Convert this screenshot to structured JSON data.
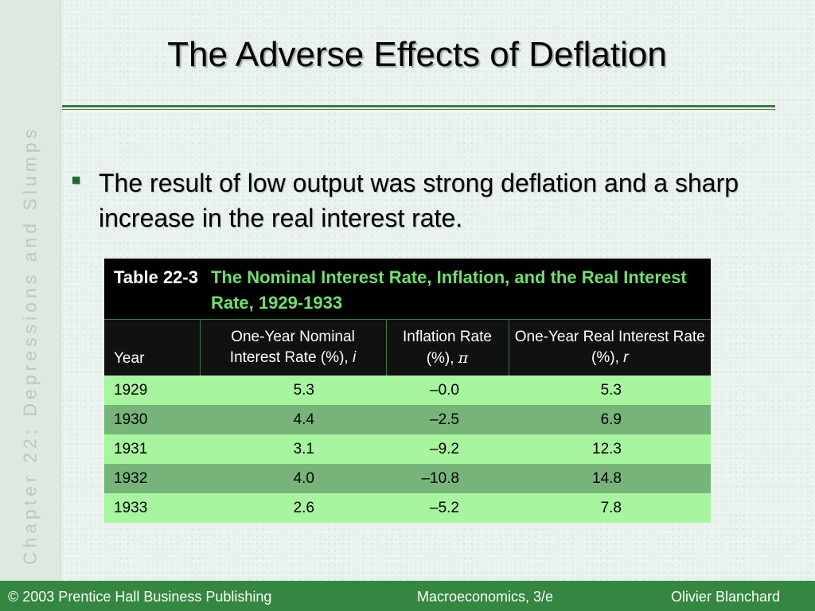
{
  "sidebar": {
    "chapter_label": "Chapter 22: Depressions and Slumps"
  },
  "slide": {
    "title": "The Adverse Effects of Deflation",
    "bullet": "The result of low output was strong deflation and a sharp increase in the real interest rate."
  },
  "table": {
    "number": "Table 22-3",
    "title": "The Nominal Interest Rate, Inflation, and the Real Interest Rate, 1929-1933",
    "headers": {
      "year": "Year",
      "nominal": "One-Year Nominal Interest Rate (%),",
      "nominal_sym": "i",
      "inflation": "Inflation Rate (%),",
      "inflation_sym": "π",
      "real": "One-Year Real Interest Rate (%),",
      "real_sym": "r"
    },
    "rows": [
      {
        "year": "1929",
        "nominal": "5.3",
        "inflation": "–0.0",
        "real": "5.3"
      },
      {
        "year": "1930",
        "nominal": "4.4",
        "inflation": "–2.5",
        "real": "6.9"
      },
      {
        "year": "1931",
        "nominal": "3.1",
        "inflation": "–9.2",
        "real": "12.3"
      },
      {
        "year": "1932",
        "nominal": "4.0",
        "inflation": "–10.8",
        "real": "14.8"
      },
      {
        "year": "1933",
        "nominal": "2.6",
        "inflation": "–5.2",
        "real": "7.8"
      }
    ]
  },
  "footer": {
    "copyright": "© 2003 Prentice Hall Business Publishing",
    "book": "Macroeconomics, 3/e",
    "author": "Olivier Blanchard"
  },
  "colors": {
    "accent_green": "#338740",
    "caption_title_green": "#6fe06f",
    "row_light": "#a7f59f",
    "row_dark": "#77b47a"
  }
}
